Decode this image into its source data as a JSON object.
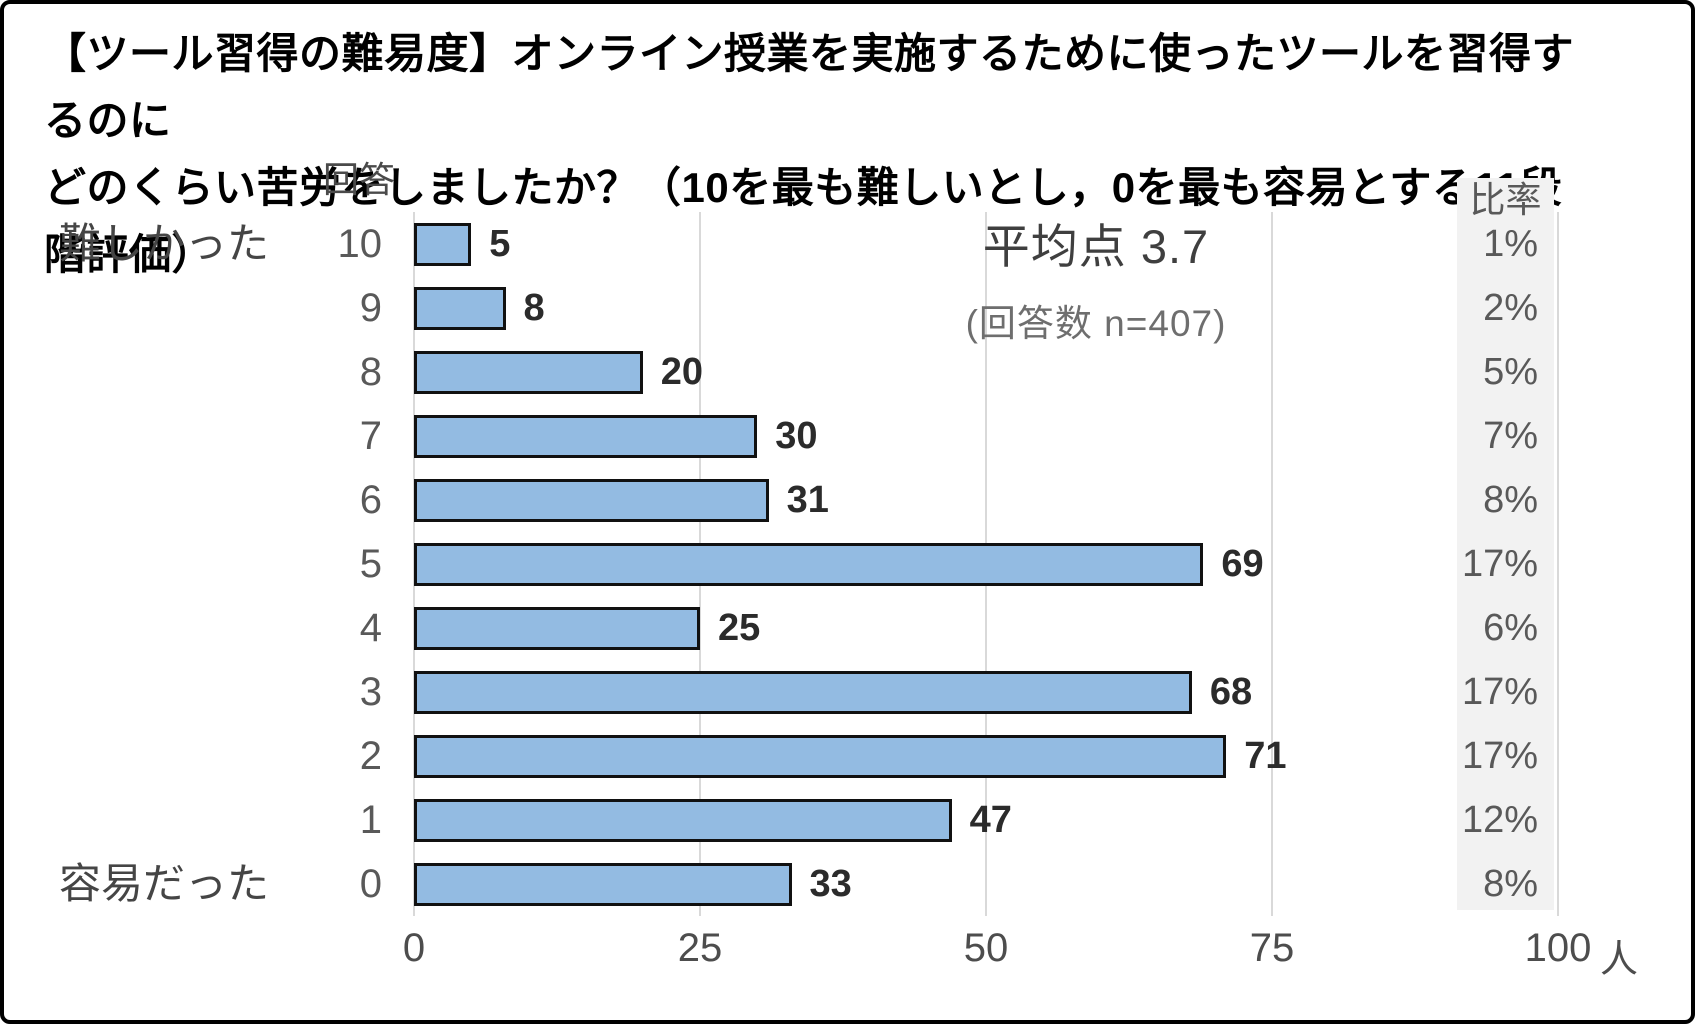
{
  "title": {
    "line1": "【ツール習得の難易度】オンライン授業を実施するために使ったツールを習得するのに",
    "line2": "どのくらい苦労をしましたか？（10を最も難しいとし，0を最も容易とする11段階評価）"
  },
  "chart_data": {
    "type": "bar",
    "orientation": "horizontal",
    "category_header": "回答",
    "ratio_header": "比率",
    "unit_label": "人",
    "side_label_top": "難しかった",
    "side_label_bottom": "容易だった",
    "annotation": {
      "average": "平均点 3.7",
      "n": "(回答数 n=407)"
    },
    "categories": [
      "10",
      "9",
      "8",
      "7",
      "6",
      "5",
      "4",
      "3",
      "2",
      "1",
      "0"
    ],
    "values": [
      5,
      8,
      20,
      30,
      31,
      69,
      25,
      68,
      71,
      47,
      33
    ],
    "percentages": [
      "1%",
      "2%",
      "5%",
      "7%",
      "8%",
      "17%",
      "6%",
      "17%",
      "17%",
      "12%",
      "8%"
    ],
    "x_ticks": [
      0,
      25,
      50,
      75,
      100
    ],
    "xlim": [
      0,
      100
    ],
    "grid": true,
    "colors": {
      "bar_fill": "#93bbe2",
      "bar_border": "#111111",
      "gridline": "#d9d9d9",
      "ratio_band_bg": "#f2f2f2"
    }
  }
}
